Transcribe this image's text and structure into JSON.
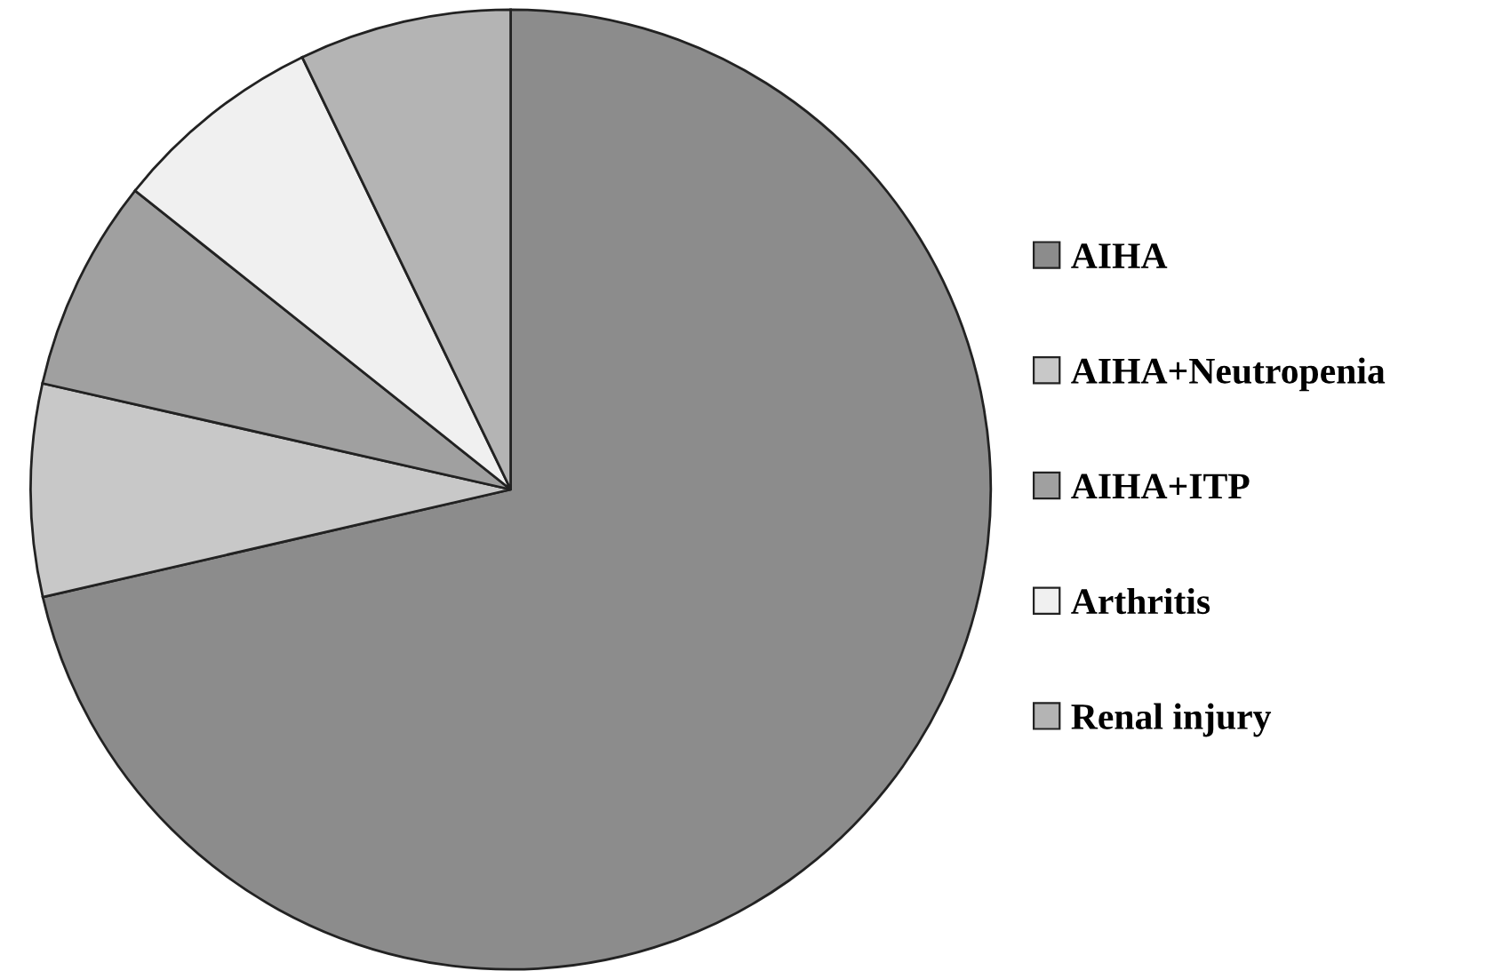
{
  "chart_data": {
    "type": "pie",
    "categories": [
      "AIHA",
      "AIHA+Neutropenia",
      "AIHA+ITP",
      "Arthritis",
      "Renal injury"
    ],
    "values": [
      71.4,
      7.15,
      7.15,
      7.15,
      7.15
    ],
    "colors": [
      "#8c8c8c",
      "#c8c8c8",
      "#a0a0a0",
      "#f0f0f0",
      "#b4b4b4"
    ],
    "legend": "right"
  }
}
